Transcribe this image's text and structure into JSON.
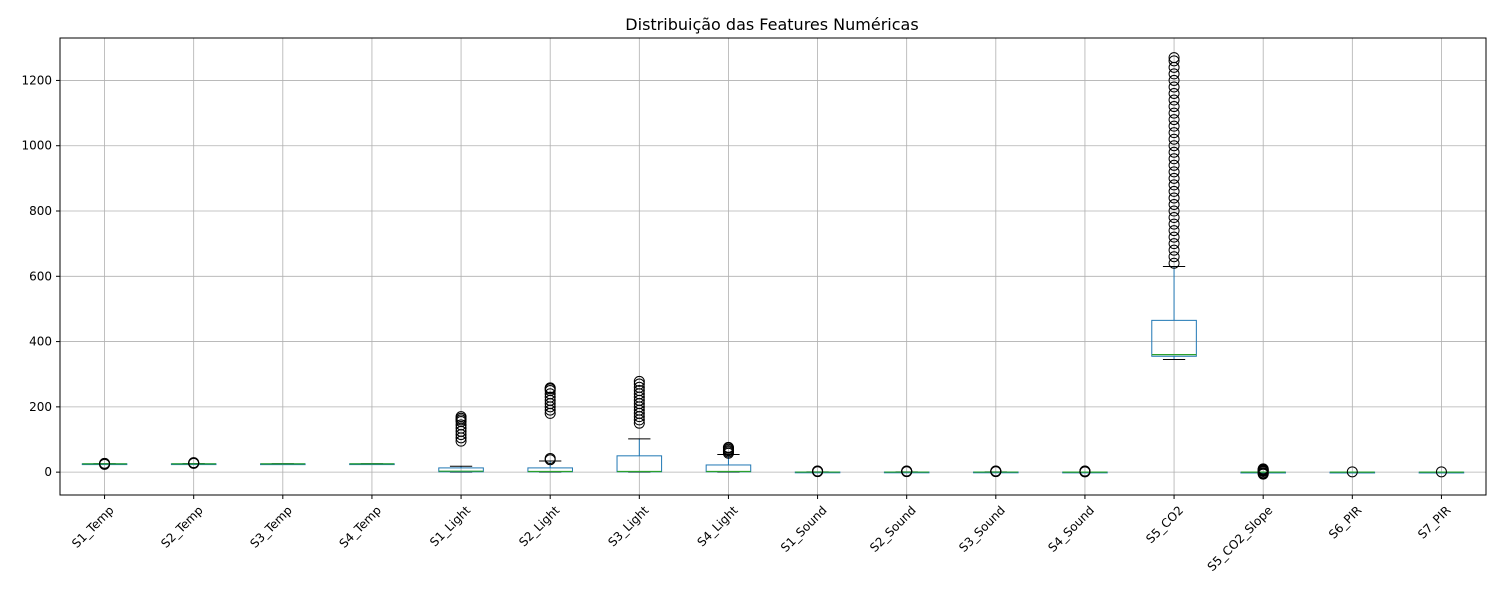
{
  "chart_data": {
    "type": "box",
    "title": "Distribuição das Features Numéricas",
    "xlabel": "",
    "ylabel": "",
    "ylim": [
      -70,
      1330
    ],
    "yticks": [
      0,
      200,
      400,
      600,
      800,
      1000,
      1200
    ],
    "grid": true,
    "colors": {
      "box": "#1f77b4",
      "median": "#2ca02c",
      "whisker": "#000000",
      "outlier": "#000000",
      "grid": "#b0b0b0"
    },
    "categories": [
      "S1_Temp",
      "S2_Temp",
      "S3_Temp",
      "S4_Temp",
      "S1_Light",
      "S2_Light",
      "S3_Light",
      "S4_Light",
      "S1_Sound",
      "S2_Sound",
      "S3_Sound",
      "S4_Sound",
      "S5_CO2",
      "S5_CO2_Slope",
      "S6_PIR",
      "S7_PIR"
    ],
    "boxes": [
      {
        "name": "S1_Temp",
        "min": 24.5,
        "q1": 25.2,
        "median": 25.4,
        "q3": 25.6,
        "max": 26.3,
        "outliers": [
          24.0,
          26.6,
          27.0
        ]
      },
      {
        "name": "S2_Temp",
        "min": 24.5,
        "q1": 25.2,
        "median": 25.4,
        "q3": 25.6,
        "max": 26.4,
        "outliers": [
          26.8,
          27.5,
          28.5,
          29.0
        ]
      },
      {
        "name": "S3_Temp",
        "min": 24.5,
        "q1": 25.1,
        "median": 25.3,
        "q3": 25.5,
        "max": 26.3,
        "outliers": []
      },
      {
        "name": "S4_Temp",
        "min": 24.5,
        "q1": 25.2,
        "median": 25.4,
        "q3": 25.6,
        "max": 26.3,
        "outliers": []
      },
      {
        "name": "S1_Light",
        "min": 0,
        "q1": 1,
        "median": 3,
        "q3": 13,
        "max": 18,
        "outliers": [
          95,
          105,
          115,
          125,
          135,
          145,
          155,
          160,
          165,
          170
        ]
      },
      {
        "name": "S2_Light",
        "min": 0,
        "q1": 1,
        "median": 2,
        "q3": 13,
        "max": 34,
        "outliers": [
          38,
          42,
          180,
          190,
          200,
          210,
          220,
          230,
          240,
          250,
          255,
          258
        ]
      },
      {
        "name": "S3_Light",
        "min": 0,
        "q1": 1,
        "median": 2,
        "q3": 50,
        "max": 102,
        "outliers": [
          150,
          160,
          170,
          180,
          190,
          200,
          210,
          220,
          230,
          240,
          250,
          260,
          270,
          278
        ]
      },
      {
        "name": "S4_Light",
        "min": 0,
        "q1": 1,
        "median": 2,
        "q3": 22,
        "max": 54,
        "outliers": [
          58,
          62,
          66,
          70,
          74,
          76
        ]
      },
      {
        "name": "S1_Sound",
        "min": 0.05,
        "q1": 0.1,
        "median": 0.2,
        "q3": 0.5,
        "max": 1.0,
        "outliers": [
          1.5,
          2.0,
          2.5,
          3.0,
          3.5
        ]
      },
      {
        "name": "S2_Sound",
        "min": 0.05,
        "q1": 0.1,
        "median": 0.2,
        "q3": 0.5,
        "max": 1.0,
        "outliers": [
          1.5,
          2.0,
          2.5,
          3.0,
          3.4
        ]
      },
      {
        "name": "S3_Sound",
        "min": 0.05,
        "q1": 0.1,
        "median": 0.2,
        "q3": 0.5,
        "max": 1.0,
        "outliers": [
          1.5,
          2.0,
          2.5,
          3.0,
          3.6
        ]
      },
      {
        "name": "S4_Sound",
        "min": 0.05,
        "q1": 0.1,
        "median": 0.1,
        "q3": 0.3,
        "max": 0.6,
        "outliers": [
          1.0,
          1.5,
          2.0,
          2.5,
          3.0,
          3.4
        ]
      },
      {
        "name": "S5_CO2",
        "min": 345,
        "q1": 355,
        "median": 360,
        "q3": 465,
        "max": 630,
        "outliers": [
          640,
          660,
          680,
          700,
          720,
          740,
          760,
          780,
          800,
          820,
          840,
          860,
          880,
          900,
          920,
          940,
          960,
          980,
          1000,
          1020,
          1040,
          1060,
          1080,
          1100,
          1120,
          1140,
          1160,
          1180,
          1200,
          1220,
          1240,
          1260,
          1270
        ]
      },
      {
        "name": "S5_CO2_Slope",
        "min": -0.5,
        "q1": 0,
        "median": 0,
        "q3": 0,
        "max": 0.5,
        "outliers": [
          -6,
          -4,
          -2,
          2,
          4,
          6,
          8,
          10
        ]
      },
      {
        "name": "S6_PIR",
        "min": 0,
        "q1": 0,
        "median": 0,
        "q3": 0,
        "max": 0,
        "outliers": [
          1
        ]
      },
      {
        "name": "S7_PIR",
        "min": 0,
        "q1": 0,
        "median": 0,
        "q3": 0,
        "max": 0,
        "outliers": [
          1
        ]
      }
    ]
  }
}
